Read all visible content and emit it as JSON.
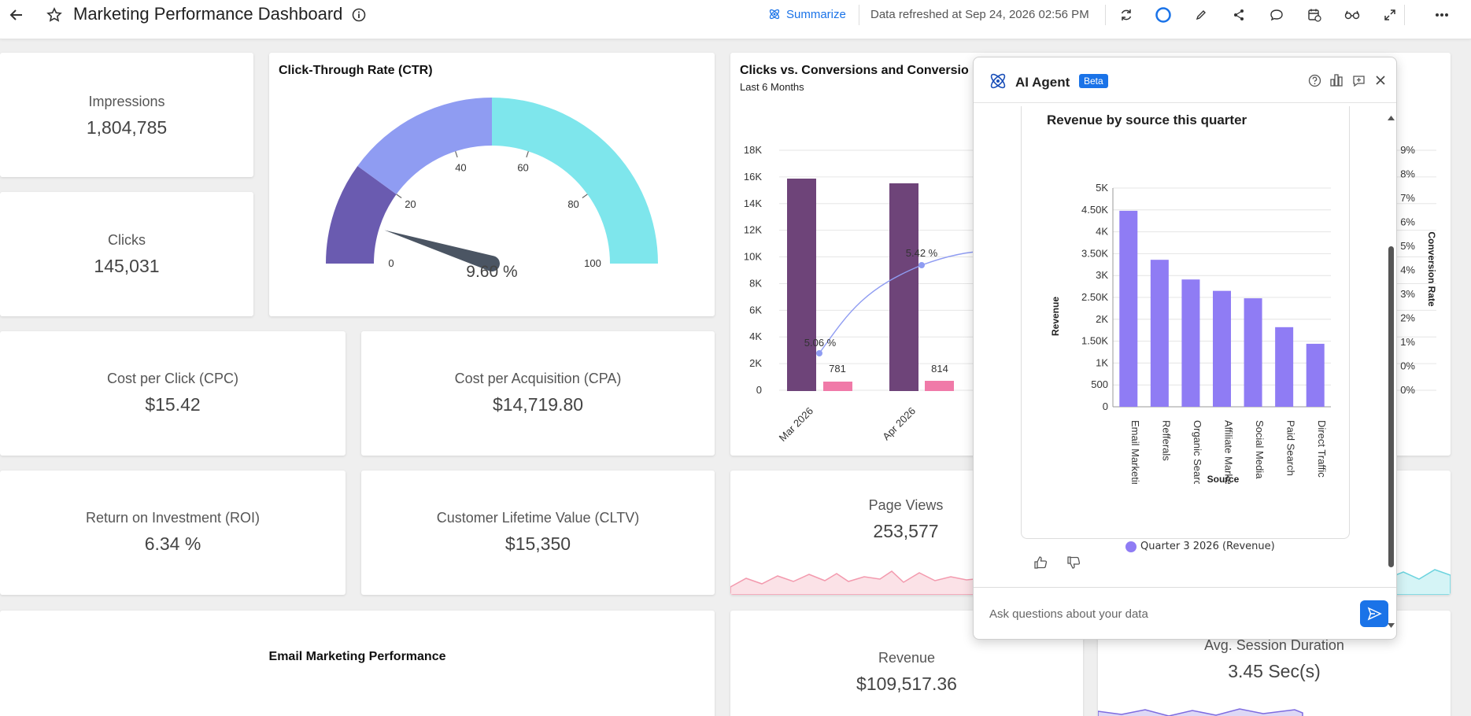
{
  "header": {
    "title": "Marketing Performance Dashboard",
    "summarize_label": "Summarize",
    "refreshed_text": "Data refreshed at Sep 24, 2026 02:56 PM"
  },
  "kpis": {
    "impressions": {
      "label": "Impressions",
      "value": "1,804,785"
    },
    "clicks": {
      "label": "Clicks",
      "value": "145,031"
    },
    "cpc": {
      "label": "Cost per Click (CPC)",
      "value": "$15.42"
    },
    "cpa": {
      "label": "Cost per Acquisition (CPA)",
      "value": "$14,719.80"
    },
    "roi": {
      "label": "Return on Investment (ROI)",
      "value": "6.34 %"
    },
    "cltv": {
      "label": "Customer Lifetime Value (CLTV)",
      "value": "$15,350"
    },
    "page_views": {
      "label": "Page Views",
      "value": "253,577"
    },
    "revenue": {
      "label": "Revenue",
      "value": "$109,517.36"
    },
    "session": {
      "label": "Avg. Session Duration",
      "value": "3.45 Sec(s)"
    }
  },
  "ctr": {
    "title": "Click-Through Rate (CTR)",
    "value_label": "9.60 %",
    "value": 9.6,
    "ticks": [
      "0",
      "20",
      "40",
      "60",
      "80",
      "100"
    ],
    "colors": [
      "#6a5bb0",
      "#8f9cf2",
      "#7ee6ec"
    ]
  },
  "clicks_chart": {
    "title": "Clicks vs. Conversions and Conversio",
    "subtitle": "Last 6 Months",
    "y_ticks": [
      "18K",
      "16K",
      "14K",
      "12K",
      "10K",
      "8K",
      "6K",
      "4K",
      "2K",
      "0"
    ],
    "right_ticks": [
      "9%",
      "8%",
      "7%",
      "6%",
      "5%",
      "4%",
      "3%",
      "2%",
      "1%",
      "0%",
      "0%"
    ],
    "right_axis_label": "Conversion Rate",
    "labels": [
      "5.06 %",
      "781",
      "5.42 %",
      "814"
    ],
    "colors": {
      "clicks": "#6e4479",
      "conversions": "#f07aa8",
      "rate": "#8f9cf2"
    }
  },
  "email_title": "Email Marketing Performance",
  "agent": {
    "title": "AI Agent",
    "badge": "Beta",
    "placeholder": "Ask questions about your data"
  },
  "chart_data": {
    "type": "bar",
    "title": "Revenue by source this quarter",
    "xlabel": "Source",
    "ylabel": "Revenue",
    "categories": [
      "Email Marketing",
      "Refferals",
      "Organic Search",
      "Affiliate Marketing",
      "Social Media",
      "Paid Search",
      "Direct Traffic"
    ],
    "series": [
      {
        "name": "Quarter 3 2026 (Revenue)",
        "values": [
          4480,
          3360,
          2910,
          2650,
          2480,
          1820,
          1440
        ]
      }
    ],
    "y_ticks": [
      "5K",
      "4.50K",
      "4K",
      "3.50K",
      "3K",
      "2.50K",
      "2K",
      "1.50K",
      "1K",
      "500",
      "0"
    ],
    "ylim": [
      0,
      5000
    ],
    "grid": true,
    "legend": "bottom",
    "color": "#8f7cf4"
  }
}
